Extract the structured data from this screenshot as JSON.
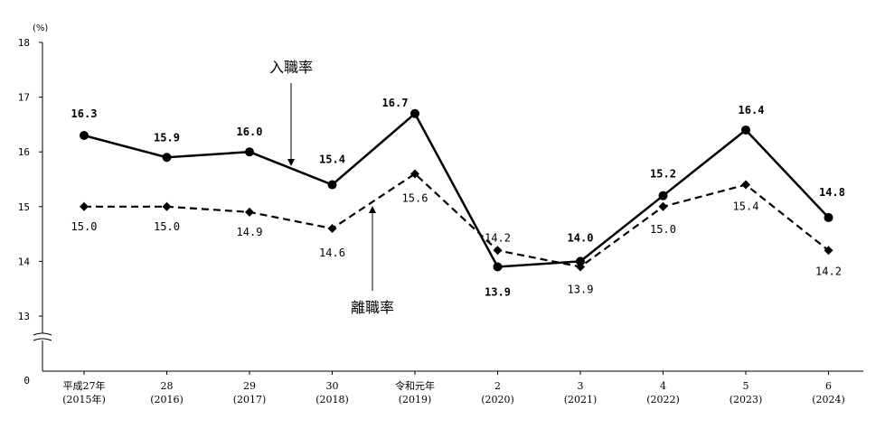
{
  "chart_data": {
    "type": "line",
    "unit": "(%)",
    "categories": [
      {
        "line1": "平成27年",
        "line2": "(2015年)"
      },
      {
        "line1": "28",
        "line2": "(2016)"
      },
      {
        "line1": "29",
        "line2": "(2017)"
      },
      {
        "line1": "30",
        "line2": "(2018)"
      },
      {
        "line1": "令和元年",
        "line2": "(2019)"
      },
      {
        "line1": "2",
        "line2": "(2020)"
      },
      {
        "line1": "3",
        "line2": "(2021)"
      },
      {
        "line1": "4",
        "line2": "(2022)"
      },
      {
        "line1": "5",
        "line2": "(2023)"
      },
      {
        "line1": "6",
        "line2": "(2024)"
      }
    ],
    "y_ticks": [
      "18",
      "17",
      "16",
      "15",
      "14",
      "13",
      "0"
    ],
    "ylim": [
      13,
      18
    ],
    "axis_break": true,
    "series": [
      {
        "name": "入職率",
        "style": "solid",
        "marker": "circle",
        "values": [
          16.3,
          15.9,
          16.0,
          15.4,
          16.7,
          13.9,
          14.0,
          15.2,
          16.4,
          14.8
        ],
        "labels": [
          "16.3",
          "15.9",
          "16.0",
          "15.4",
          "16.7",
          "13.9",
          "14.0",
          "15.2",
          "16.4",
          "14.8"
        ]
      },
      {
        "name": "離職率",
        "style": "dashed",
        "marker": "diamond",
        "values": [
          15.0,
          15.0,
          14.9,
          14.6,
          15.6,
          14.2,
          13.9,
          15.0,
          15.4,
          14.2
        ],
        "labels": [
          "15.0",
          "15.0",
          "14.9",
          "14.6",
          "15.6",
          "14.2",
          "13.9",
          "15.0",
          "15.4",
          "14.2"
        ]
      }
    ],
    "colors": {
      "line": "#000000",
      "background": "#ffffff"
    }
  }
}
